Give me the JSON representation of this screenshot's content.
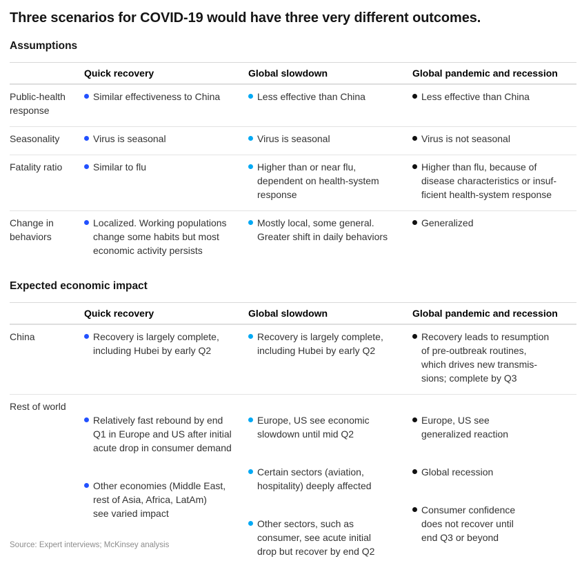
{
  "page": {
    "title": "Three scenarios for COVID-19 would have three very different outcomes.",
    "source": "Source: Expert interviews; McKinsey analysis"
  },
  "colors": {
    "quick_recovery_bullet": "#2251ff",
    "global_slowdown_bullet": "#00a9f4",
    "global_pandemic_bullet": "#111111",
    "divider": "#e3e3e3"
  },
  "columns": [
    "Quick recovery",
    "Global slowdown",
    "Global pandemic and recession"
  ],
  "sections": [
    {
      "heading": "Assumptions",
      "rows": [
        {
          "label": "Public-health\nresponse",
          "cells": [
            [
              "Similar effectiveness to China"
            ],
            [
              "Less effective than China"
            ],
            [
              "Less effective than China"
            ]
          ]
        },
        {
          "label": "Seasonality",
          "cells": [
            [
              "Virus is seasonal"
            ],
            [
              "Virus is seasonal"
            ],
            [
              "Virus is not seasonal"
            ]
          ]
        },
        {
          "label": "Fatality ratio",
          "cells": [
            [
              "Similar to flu"
            ],
            [
              "Higher than or near flu,\ndependent on health-system\nresponse"
            ],
            [
              "Higher than flu, because of\ndisease characteristics or insuf-\nficient health-system response"
            ]
          ]
        },
        {
          "label": "Change in\nbehaviors",
          "cells": [
            [
              "Localized. Working populations\nchange some habits but most\neconomic activity persists"
            ],
            [
              "Mostly local, some general.\nGreater shift in daily behaviors"
            ],
            [
              "Generalized"
            ]
          ]
        }
      ]
    },
    {
      "heading": "Expected economic impact",
      "rows": [
        {
          "label": "China",
          "cells": [
            [
              "Recovery is largely complete,\nincluding Hubei by early Q2"
            ],
            [
              "Recovery is largely complete,\nincluding Hubei by early Q2"
            ],
            [
              "Recovery leads to resumption\nof pre-outbreak routines,\nwhich drives new transmis-\nsions; complete by Q3"
            ]
          ]
        },
        {
          "label": "Rest of world",
          "cells": [
            [
              "Relatively fast rebound by end\nQ1 in Europe and US after initial\nacute drop in consumer demand",
              "Other economies (Middle East,\nrest of Asia, Africa, LatAm)\nsee varied impact"
            ],
            [
              "Europe, US see economic\nslowdown until mid Q2",
              "Certain sectors (aviation,\nhospitality) deeply affected",
              "Other sectors, such as\nconsumer, see acute initial\ndrop but recover by end Q2"
            ],
            [
              "Europe, US see\ngeneralized reaction",
              "Global recession",
              "Consumer confidence\ndoes not recover until\nend Q3 or beyond"
            ]
          ]
        }
      ]
    }
  ]
}
